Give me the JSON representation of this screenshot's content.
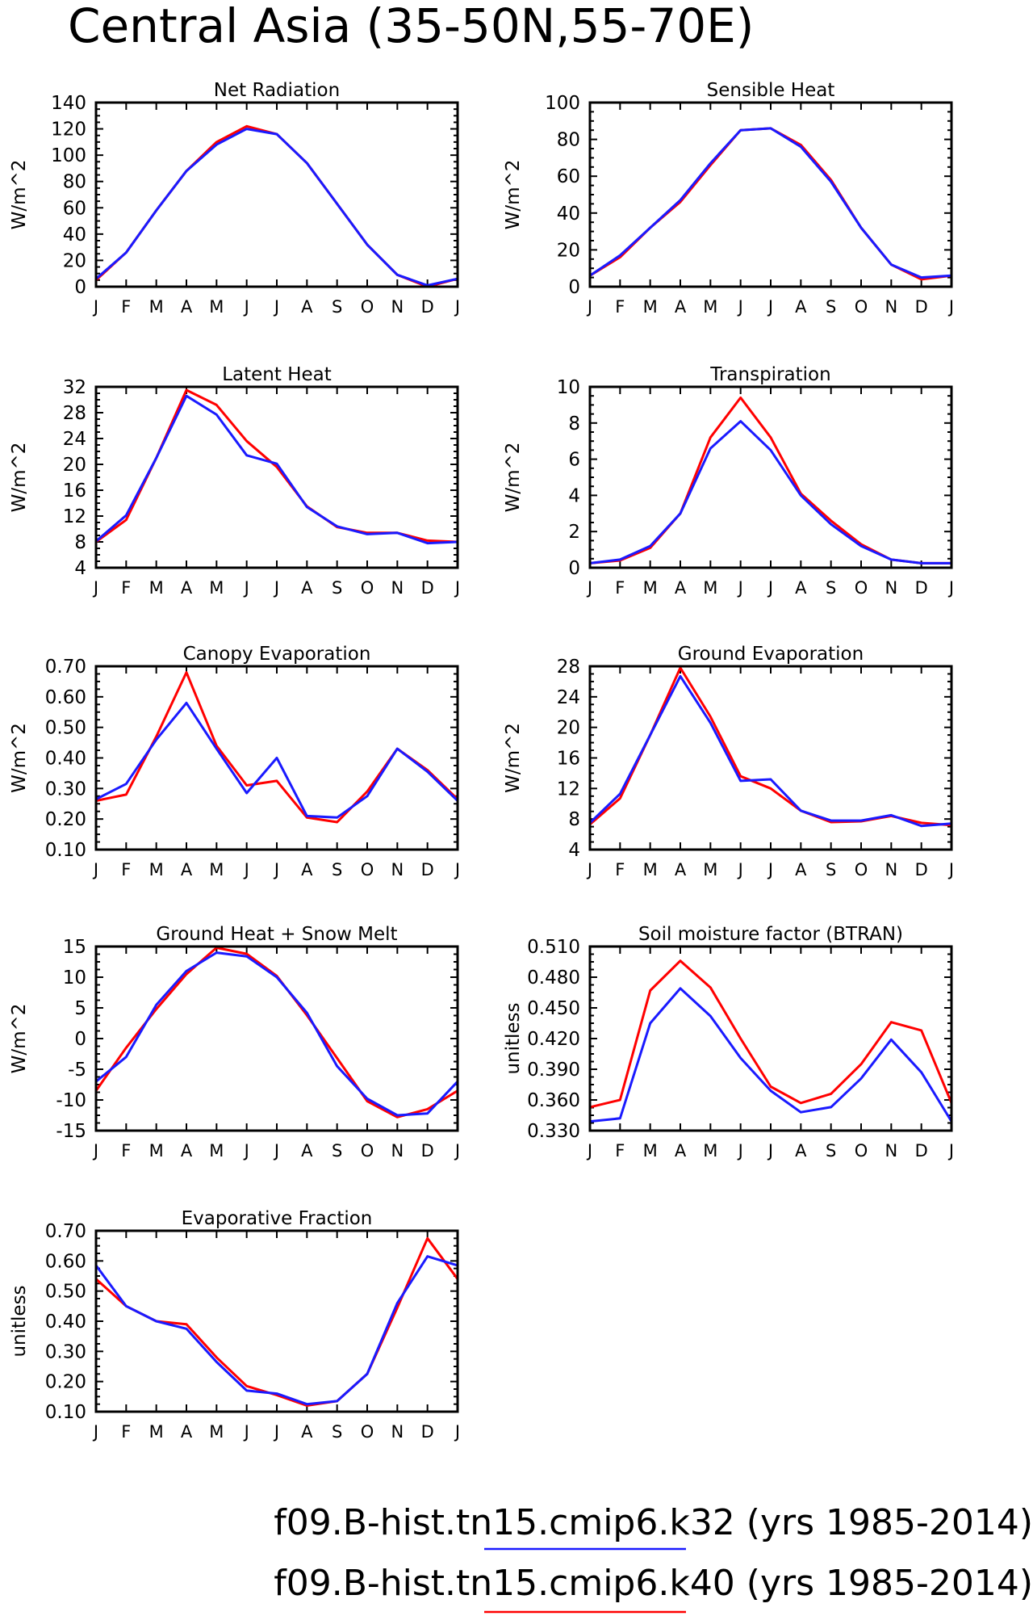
{
  "figure": {
    "title": "Central Asia (35-50N,55-70E)",
    "legend": [
      {
        "label": "f09.B-hist.tn15.cmip6.k32 (yrs 1985-2014)",
        "color": "#1a1aff"
      },
      {
        "label": "f09.B-hist.tn15.cmip6.k40 (yrs 1985-2014)",
        "color": "#ff0000"
      }
    ]
  },
  "chart_data": [
    {
      "type": "line",
      "title": "Net Radiation",
      "ylabel": "W/m^2",
      "categories": [
        "J",
        "F",
        "M",
        "A",
        "M",
        "J",
        "J",
        "A",
        "S",
        "O",
        "N",
        "D",
        "J"
      ],
      "ylim": [
        0,
        140
      ],
      "yticks": [
        "0",
        "20",
        "40",
        "60",
        "80",
        "100",
        "120",
        "140"
      ],
      "series": [
        {
          "color": "#ff0000",
          "values": [
            5,
            26,
            58,
            88,
            110,
            122,
            116,
            94,
            63,
            32,
            9,
            0,
            6
          ]
        },
        {
          "color": "#1a1aff",
          "values": [
            6,
            26,
            58,
            88,
            108,
            120,
            116,
            94,
            63,
            32,
            9,
            1,
            6
          ]
        }
      ]
    },
    {
      "type": "line",
      "title": "Sensible Heat",
      "ylabel": "W/m^2",
      "categories": [
        "J",
        "F",
        "M",
        "A",
        "M",
        "J",
        "J",
        "A",
        "S",
        "O",
        "N",
        "D",
        "J"
      ],
      "ylim": [
        0,
        100
      ],
      "yticks": [
        "0",
        "20",
        "40",
        "60",
        "80",
        "100"
      ],
      "series": [
        {
          "color": "#ff0000",
          "values": [
            6,
            16,
            32,
            46,
            66,
            85,
            86,
            77,
            58,
            32,
            12,
            4,
            6
          ]
        },
        {
          "color": "#1a1aff",
          "values": [
            6,
            17,
            32,
            47,
            67,
            85,
            86,
            76,
            57,
            32,
            12,
            5,
            6
          ]
        }
      ]
    },
    {
      "type": "line",
      "title": "Latent Heat",
      "ylabel": "W/m^2",
      "categories": [
        "J",
        "F",
        "M",
        "A",
        "M",
        "J",
        "J",
        "A",
        "S",
        "O",
        "N",
        "D",
        "J"
      ],
      "ylim": [
        4,
        32
      ],
      "yticks": [
        "4",
        "8",
        "12",
        "16",
        "20",
        "24",
        "28",
        "32"
      ],
      "series": [
        {
          "color": "#ff0000",
          "values": [
            8,
            11.4,
            21,
            31.5,
            29.2,
            23.6,
            19.6,
            13.5,
            10.3,
            9.4,
            9.4,
            8.2,
            8
          ]
        },
        {
          "color": "#1a1aff",
          "values": [
            8.1,
            12.1,
            21,
            30.6,
            27.7,
            21.4,
            20.1,
            13.4,
            10.4,
            9.2,
            9.4,
            7.8,
            8
          ]
        }
      ]
    },
    {
      "type": "line",
      "title": "Transpiration",
      "ylabel": "W/m^2",
      "categories": [
        "J",
        "F",
        "M",
        "A",
        "M",
        "J",
        "J",
        "A",
        "S",
        "O",
        "N",
        "D",
        "J"
      ],
      "ylim": [
        0,
        10
      ],
      "yticks": [
        "0",
        "2",
        "4",
        "6",
        "8",
        "10"
      ],
      "series": [
        {
          "color": "#ff0000",
          "values": [
            0.25,
            0.4,
            1.1,
            3.0,
            7.2,
            9.4,
            7.2,
            4.1,
            2.6,
            1.3,
            0.45,
            0.25,
            0.25
          ]
        },
        {
          "color": "#1a1aff",
          "values": [
            0.25,
            0.45,
            1.2,
            3.0,
            6.6,
            8.1,
            6.5,
            4.0,
            2.4,
            1.2,
            0.45,
            0.25,
            0.25
          ]
        }
      ]
    },
    {
      "type": "line",
      "title": "Canopy Evaporation",
      "ylabel": "W/m^2",
      "categories": [
        "J",
        "F",
        "M",
        "A",
        "M",
        "J",
        "J",
        "A",
        "S",
        "O",
        "N",
        "D",
        "J"
      ],
      "ylim": [
        0.1,
        0.7
      ],
      "yticks": [
        "0.10",
        "0.20",
        "0.30",
        "0.40",
        "0.50",
        "0.60",
        "0.70"
      ],
      "series": [
        {
          "color": "#ff0000",
          "values": [
            0.26,
            0.28,
            0.47,
            0.68,
            0.44,
            0.31,
            0.325,
            0.205,
            0.19,
            0.29,
            0.43,
            0.36,
            0.265
          ]
        },
        {
          "color": "#1a1aff",
          "values": [
            0.265,
            0.315,
            0.46,
            0.58,
            0.43,
            0.285,
            0.4,
            0.21,
            0.205,
            0.275,
            0.43,
            0.355,
            0.26
          ]
        }
      ]
    },
    {
      "type": "line",
      "title": "Ground Evaporation",
      "ylabel": "W/m^2",
      "categories": [
        "J",
        "F",
        "M",
        "A",
        "M",
        "J",
        "J",
        "A",
        "S",
        "O",
        "N",
        "D",
        "J"
      ],
      "ylim": [
        4,
        28
      ],
      "yticks": [
        "4",
        "8",
        "12",
        "16",
        "20",
        "24",
        "28"
      ],
      "series": [
        {
          "color": "#ff0000",
          "values": [
            7.3,
            10.7,
            19,
            27.8,
            21.4,
            13.6,
            12,
            9.1,
            7.6,
            7.7,
            8.4,
            7.5,
            7.2
          ]
        },
        {
          "color": "#1a1aff",
          "values": [
            7.5,
            11.3,
            19,
            26.7,
            20.6,
            13,
            13.2,
            9.1,
            7.8,
            7.8,
            8.5,
            7.1,
            7.4
          ]
        }
      ]
    },
    {
      "type": "line",
      "title": "Ground Heat + Snow Melt",
      "ylabel": "W/m^2",
      "categories": [
        "J",
        "F",
        "M",
        "A",
        "M",
        "J",
        "J",
        "A",
        "S",
        "O",
        "N",
        "D",
        "J"
      ],
      "ylim": [
        -15,
        15
      ],
      "yticks": [
        "-15",
        "-10",
        "-5",
        "0",
        "5",
        "10",
        "15"
      ],
      "series": [
        {
          "color": "#ff0000",
          "values": [
            -8.5,
            -1.5,
            4.8,
            10.5,
            14.8,
            13.8,
            10.2,
            3.8,
            -3.2,
            -10.2,
            -12.8,
            -11.5,
            -8.5
          ]
        },
        {
          "color": "#1a1aff",
          "values": [
            -7,
            -3,
            5.5,
            11,
            14,
            13.4,
            10,
            4.2,
            -4.5,
            -9.8,
            -12.5,
            -12.2,
            -7
          ]
        }
      ]
    },
    {
      "type": "line",
      "title": "Soil moisture factor (BTRAN)",
      "ylabel": "unitless",
      "categories": [
        "J",
        "F",
        "M",
        "A",
        "M",
        "J",
        "J",
        "A",
        "S",
        "O",
        "N",
        "D",
        "J"
      ],
      "ylim": [
        0.33,
        0.51
      ],
      "yticks": [
        "0.330",
        "0.360",
        "0.390",
        "0.420",
        "0.450",
        "0.480",
        "0.510"
      ],
      "series": [
        {
          "color": "#ff0000",
          "values": [
            0.353,
            0.36,
            0.467,
            0.496,
            0.47,
            0.42,
            0.373,
            0.357,
            0.366,
            0.395,
            0.436,
            0.428,
            0.357
          ]
        },
        {
          "color": "#1a1aff",
          "values": [
            0.339,
            0.342,
            0.435,
            0.469,
            0.442,
            0.401,
            0.369,
            0.348,
            0.353,
            0.381,
            0.419,
            0.387,
            0.339
          ]
        }
      ]
    },
    {
      "type": "line",
      "title": "Evaporative Fraction",
      "ylabel": "unitless",
      "categories": [
        "J",
        "F",
        "M",
        "A",
        "M",
        "J",
        "J",
        "A",
        "S",
        "O",
        "N",
        "D",
        "J"
      ],
      "ylim": [
        0.1,
        0.7
      ],
      "yticks": [
        "0.10",
        "0.20",
        "0.30",
        "0.40",
        "0.50",
        "0.60",
        "0.70"
      ],
      "series": [
        {
          "color": "#ff0000",
          "values": [
            0.54,
            0.45,
            0.4,
            0.39,
            0.28,
            0.185,
            0.155,
            0.12,
            0.135,
            0.225,
            0.445,
            0.675,
            0.54
          ]
        },
        {
          "color": "#1a1aff",
          "values": [
            0.585,
            0.45,
            0.4,
            0.375,
            0.265,
            0.17,
            0.16,
            0.125,
            0.135,
            0.225,
            0.46,
            0.615,
            0.585
          ]
        }
      ]
    }
  ]
}
